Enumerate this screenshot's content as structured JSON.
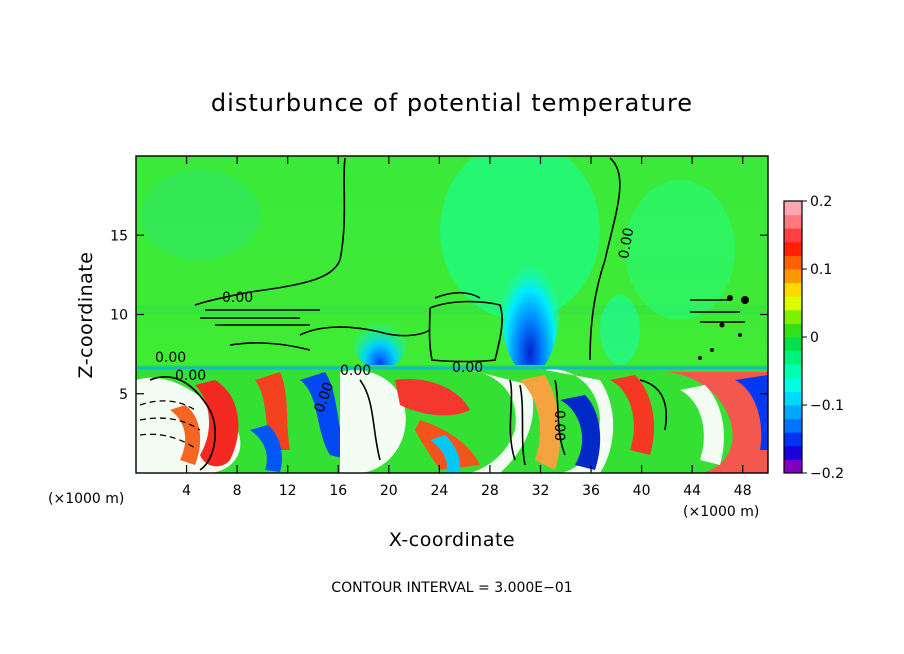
{
  "chart_data": {
    "type": "heatmap",
    "title": "disturbunce of potential temperature",
    "xlabel": "X-coordinate",
    "ylabel": "Z-coordinate",
    "x_unit": "(×1000 m)",
    "xlim": [
      0,
      50
    ],
    "ylim": [
      0,
      20
    ],
    "x_ticks": [
      4,
      8,
      12,
      16,
      20,
      24,
      28,
      32,
      36,
      40,
      44,
      48
    ],
    "y_ticks": [
      5,
      10,
      15
    ],
    "colorbar": {
      "min": -0.2,
      "max": 0.2,
      "ticks": [
        0.2,
        0.1,
        0,
        -0.1,
        -0.2
      ],
      "tick_labels": [
        "0.2",
        "0.1",
        "0",
        "−0.1",
        "−0.2"
      ],
      "colors": [
        "#7f00bf",
        "#1a00d9",
        "#0033f2",
        "#0073ff",
        "#00a6ff",
        "#00d9ff",
        "#00ffe0",
        "#00ffb0",
        "#00f27a",
        "#00e04d",
        "#33e01a",
        "#80f000",
        "#d9ff00",
        "#ffd900",
        "#ff9900",
        "#ff6000",
        "#ff2000",
        "#ff4040",
        "#ff7a7a",
        "#ffa6b3"
      ]
    },
    "contour_labels": [
      "0.00",
      "0.00",
      "0.00",
      "0.00",
      "0.00",
      "0.00",
      "0.00",
      "0.00"
    ],
    "contour_interval_text": "CONTOUR INTERVAL = 3.000E−01"
  }
}
